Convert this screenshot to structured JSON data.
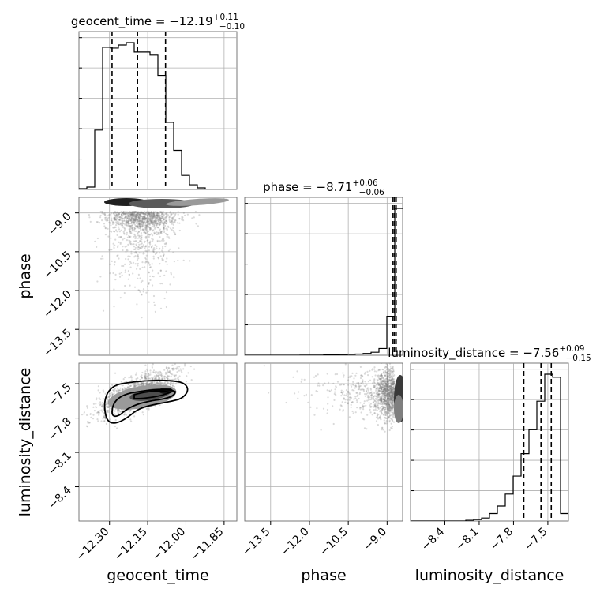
{
  "chart_data": {
    "type": "scatter",
    "subtype": "corner",
    "parameters": [
      "geocent_time",
      "phase",
      "luminosity_distance"
    ],
    "titles": [
      {
        "param": "geocent_time",
        "prefix": "geocent_time = −12.19",
        "sup": "+0.11",
        "sub": "−0.10",
        "median": -12.19,
        "plus": 0.11,
        "minus": 0.1
      },
      {
        "param": "phase",
        "prefix": "phase = −8.71",
        "sup": "+0.06",
        "sub": "−0.06",
        "median": -8.71,
        "plus": 0.06,
        "minus": 0.06
      },
      {
        "param": "luminosity_distance",
        "prefix": "luminosity_distance = −7.56",
        "sup": "+0.09",
        "sub": "−0.15",
        "median": -7.56,
        "plus": 0.09,
        "minus": 0.15
      }
    ],
    "ranges": {
      "geocent_time": [
        -12.42,
        -11.8
      ],
      "phase": [
        -14.5,
        -8.4
      ],
      "luminosity_distance": [
        -8.7,
        -7.32
      ]
    },
    "tick_labels": {
      "geocent_time": [
        "−12.30",
        "−12.15",
        "−12.00",
        "−11.85"
      ],
      "phase": [
        "−13.5",
        "−12.0",
        "−10.5",
        "−9.0"
      ],
      "luminosity_distance": [
        "−8.4",
        "−8.1",
        "−7.8",
        "−7.5"
      ]
    },
    "tick_values": {
      "geocent_time": [
        -12.3,
        -12.15,
        -12.0,
        -11.85
      ],
      "phase": [
        -13.5,
        -12.0,
        -10.5,
        -9.0
      ],
      "luminosity_distance": [
        -8.4,
        -8.1,
        -7.8,
        -7.5
      ]
    },
    "histograms": {
      "geocent_time": {
        "bin_edges": [
          -12.42,
          -12.389,
          -12.358,
          -12.327,
          -12.296,
          -12.265,
          -12.234,
          -12.203,
          -12.172,
          -12.141,
          -12.11,
          -12.079,
          -12.048,
          -12.017,
          -11.986,
          -11.955,
          -11.924,
          -11.893,
          -11.862,
          -11.831,
          -11.8
        ],
        "counts": [
          0.005,
          0.015,
          0.38,
          0.91,
          0.905,
          0.925,
          0.94,
          0.88,
          0.88,
          0.86,
          0.73,
          0.43,
          0.25,
          0.09,
          0.03,
          0.01,
          0,
          0,
          0,
          0
        ],
        "quantiles": [
          -12.29,
          -12.19,
          -12.08
        ]
      },
      "phase": {
        "bin_edges": [
          -14.5,
          -14.195,
          -13.89,
          -13.585,
          -13.28,
          -12.975,
          -12.67,
          -12.365,
          -12.06,
          -11.755,
          -11.45,
          -11.145,
          -10.84,
          -10.535,
          -10.23,
          -9.925,
          -9.62,
          -9.315,
          -9.01,
          -8.705,
          -8.4
        ],
        "counts": [
          0,
          0,
          0,
          0,
          0,
          0,
          0,
          0.001,
          0.001,
          0.001,
          0.002,
          0.003,
          0.004,
          0.006,
          0.008,
          0.012,
          0.02,
          0.045,
          0.26,
          0.98
        ],
        "quantiles": [
          -8.77,
          -8.71,
          -8.65
        ]
      },
      "luminosity_distance": {
        "bin_edges": [
          -8.7,
          -8.631,
          -8.562,
          -8.493,
          -8.424,
          -8.355,
          -8.286,
          -8.217,
          -8.148,
          -8.079,
          -8.01,
          -7.941,
          -7.872,
          -7.803,
          -7.734,
          -7.665,
          -7.596,
          -7.527,
          -7.458,
          -7.389,
          -7.32
        ],
        "counts": [
          0,
          0,
          0,
          0,
          0,
          0,
          0,
          0.005,
          0.01,
          0.02,
          0.05,
          0.1,
          0.18,
          0.3,
          0.45,
          0.61,
          0.8,
          0.98,
          0.96,
          0.05
        ],
        "quantiles": [
          -7.71,
          -7.56,
          -7.47
        ]
      }
    },
    "scatter_2d": [
      {
        "x": "geocent_time",
        "y": "phase",
        "center": [
          -12.15,
          -9.15
        ],
        "note": "dense band near phase -9.0, spreads to -13.5"
      },
      {
        "x": "geocent_time",
        "y": "luminosity_distance",
        "center": [
          -12.19,
          -7.56
        ],
        "correlation": "positive"
      },
      {
        "x": "phase",
        "y": "luminosity_distance",
        "center": [
          -8.9,
          -7.56
        ]
      }
    ],
    "grid": true
  }
}
